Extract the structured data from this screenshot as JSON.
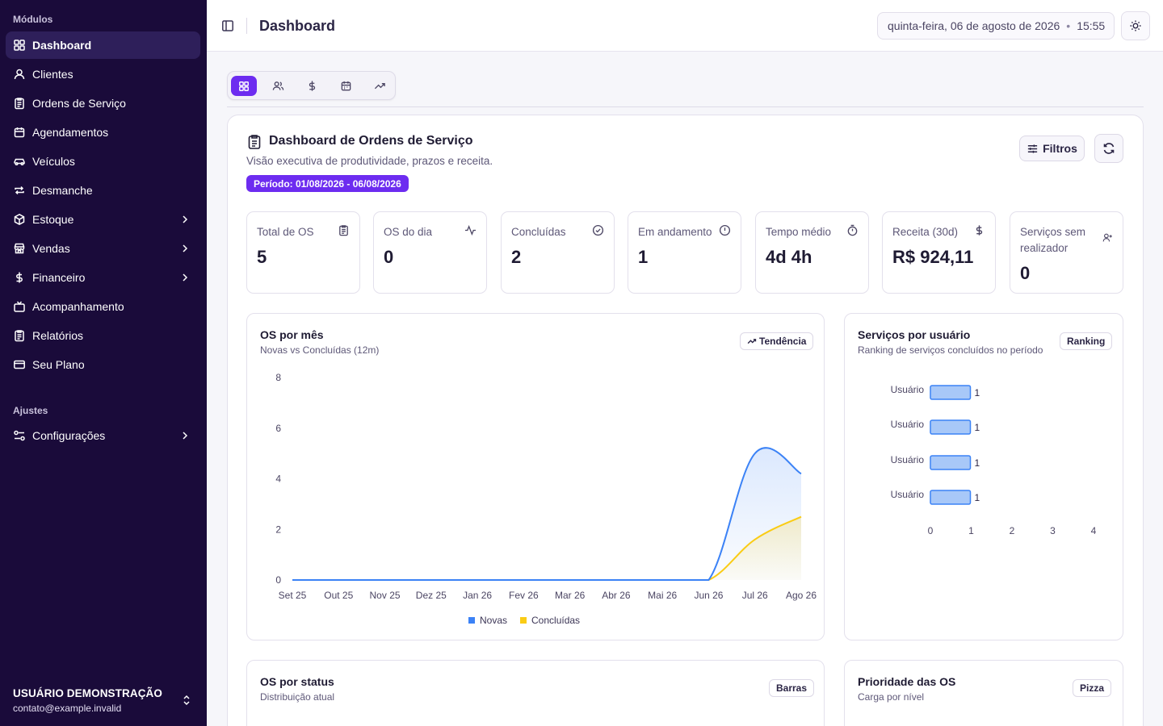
{
  "sidebar": {
    "section_modules": "Módulos",
    "section_settings": "Ajustes",
    "items": [
      {
        "label": "Dashboard",
        "icon": "grid-icon"
      },
      {
        "label": "Clientes",
        "icon": "user-icon"
      },
      {
        "label": "Ordens de Serviço",
        "icon": "clipboard-icon"
      },
      {
        "label": "Agendamentos",
        "icon": "calendar-icon"
      },
      {
        "label": "Veículos",
        "icon": "car-icon"
      },
      {
        "label": "Desmanche",
        "icon": "repeat-icon"
      },
      {
        "label": "Estoque",
        "icon": "box-icon"
      },
      {
        "label": "Vendas",
        "icon": "store-icon"
      },
      {
        "label": "Financeiro",
        "icon": "dollar-icon"
      },
      {
        "label": "Acompanhamento",
        "icon": "tv-icon"
      },
      {
        "label": "Relatórios",
        "icon": "clipboard-icon"
      },
      {
        "label": "Seu Plano",
        "icon": "card-icon"
      }
    ],
    "settings_item": {
      "label": "Configurações",
      "icon": "sliders-icon"
    },
    "user": {
      "name": "USUÁRIO DEMONSTRAÇÃO",
      "email": "contato@example.invalid"
    }
  },
  "header": {
    "title": "Dashboard",
    "date": "quinta-feira, 06 de agosto de 2026",
    "separator": "•",
    "time": "15:55"
  },
  "dashboard": {
    "title": "Dashboard de Ordens de Serviço",
    "subtitle": "Visão executiva de produtividade, prazos e receita.",
    "period": "Período: 01/08/2026 - 06/08/2026",
    "filters_label": "Filtros"
  },
  "stats": [
    {
      "label": "Total de OS",
      "value": "5",
      "icon": "clipboard-icon"
    },
    {
      "label": "OS do dia",
      "value": "0",
      "icon": "activity-icon"
    },
    {
      "label": "Concluídas",
      "value": "2",
      "icon": "check-circle-icon"
    },
    {
      "label": "Em andamento",
      "value": "1",
      "icon": "alert-circle-icon"
    },
    {
      "label": "Tempo médio",
      "value": "4d 4h",
      "icon": "timer-icon"
    },
    {
      "label": "Receita (30d)",
      "value": "R$ 924,11",
      "icon": "dollar-icon"
    },
    {
      "label": "Serviços sem realizador",
      "value": "0",
      "icon": "user-plus-icon"
    }
  ],
  "panels": {
    "monthly": {
      "title": "OS por mês",
      "subtitle": "Novas vs Concluídas (12m)",
      "badge": "Tendência"
    },
    "users": {
      "title": "Serviços por usuário",
      "subtitle": "Ranking de serviços concluídos no período",
      "badge": "Ranking"
    },
    "status": {
      "title": "OS por status",
      "subtitle": "Distribuição atual",
      "badge": "Barras"
    },
    "priority": {
      "title": "Prioridade das OS",
      "subtitle": "Carga por nível",
      "badge": "Pizza"
    }
  },
  "colors": {
    "accent": "#6d2cf0",
    "sidebar": "#1a0b3a",
    "novas": "#3b82f6",
    "concluidas": "#facc15"
  },
  "chart_data": [
    {
      "type": "area",
      "categories": [
        "Set 25",
        "Out 25",
        "Nov 25",
        "Dez 25",
        "Jan 26",
        "Fev 26",
        "Mar 26",
        "Abr 26",
        "Mai 26",
        "Jun 26",
        "Jul 26",
        "Ago 26"
      ],
      "series": [
        {
          "name": "Novas",
          "values": [
            0,
            0,
            0,
            0,
            0,
            0,
            0,
            0,
            0,
            0,
            5,
            4.2
          ]
        },
        {
          "name": "Concluídas",
          "values": [
            0,
            0,
            0,
            0,
            0,
            0,
            0,
            0,
            0,
            0,
            1.6,
            2.5
          ]
        }
      ],
      "yticks": [
        "0",
        "2",
        "4",
        "6",
        "8"
      ],
      "ylim": [
        0,
        8
      ],
      "legend": "bottom"
    },
    {
      "type": "bar",
      "orientation": "horizontal",
      "categories": [
        "Usuário",
        "Usuário",
        "Usuário",
        "Usuário"
      ],
      "values": [
        1,
        1,
        1,
        1
      ],
      "xticks": [
        "0",
        "1",
        "2",
        "3",
        "4"
      ],
      "xlim": [
        0,
        4
      ]
    }
  ]
}
